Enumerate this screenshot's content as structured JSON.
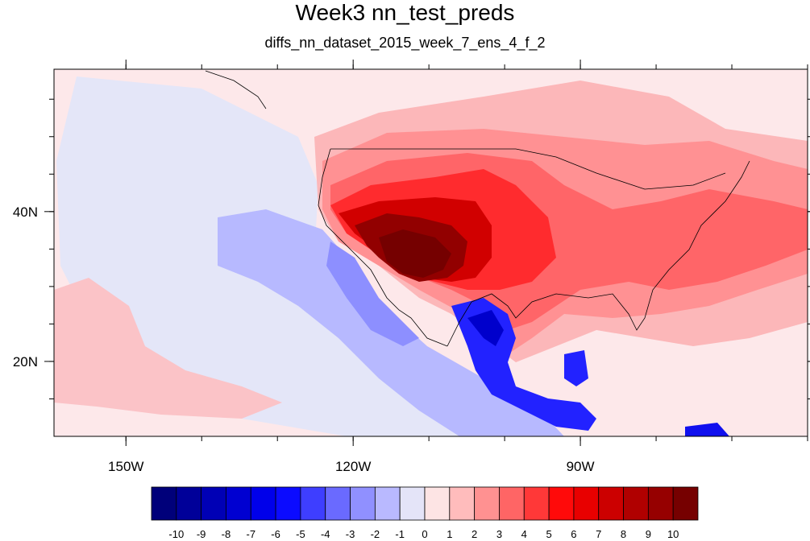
{
  "title": "Week3 nn_test_preds",
  "subtitle": "diffs_nn_dataset_2015_week_7_ens_4_f_2",
  "lon_ticks": [
    {
      "label": "150W",
      "lon": -150
    },
    {
      "label": "120W",
      "lon": -120
    },
    {
      "label": "90W",
      "lon": -90
    }
  ],
  "lat_ticks": [
    {
      "label": "40N",
      "lat": 40
    },
    {
      "label": "20N",
      "lat": 20
    }
  ],
  "map_extent": {
    "lon_min": -159.5,
    "lon_max": -60,
    "lat_min": 10,
    "lat_max": 59
  },
  "colorbar": {
    "labels": [
      "-10",
      "-9",
      "-8",
      "-7",
      "-6",
      "-5",
      "-4",
      "-3",
      "-2",
      "-1",
      "0",
      "1",
      "2",
      "3",
      "4",
      "5",
      "6",
      "7",
      "8",
      "9",
      "10"
    ],
    "colors": [
      "#00007a",
      "#000099",
      "#0000b5",
      "#0000d1",
      "#0000ea",
      "#0b0bff",
      "#3e3eff",
      "#6a6aff",
      "#9090ff",
      "#b9b9ff",
      "#e4e4f8",
      "#fde4e4",
      "#ffbcbc",
      "#ff9191",
      "#ff6565",
      "#ff3838",
      "#ff0a0a",
      "#e80000",
      "#cc0000",
      "#b00000",
      "#960000",
      "#760000"
    ]
  },
  "chart_data": {
    "type": "heatmap",
    "title": "Week3 nn_test_preds",
    "subtitle": "diffs_nn_dataset_2015_week_7_ens_4_f_2",
    "x_ticks": [
      "150W",
      "120W",
      "90W"
    ],
    "y_ticks": [
      "40N",
      "20N"
    ],
    "value_range": [
      -10,
      10
    ],
    "levels": [
      -10,
      -9,
      -8,
      -7,
      -6,
      -5,
      -4,
      -3,
      -2,
      -1,
      0,
      1,
      2,
      3,
      4,
      5,
      6,
      7,
      8,
      9,
      10
    ]
  }
}
